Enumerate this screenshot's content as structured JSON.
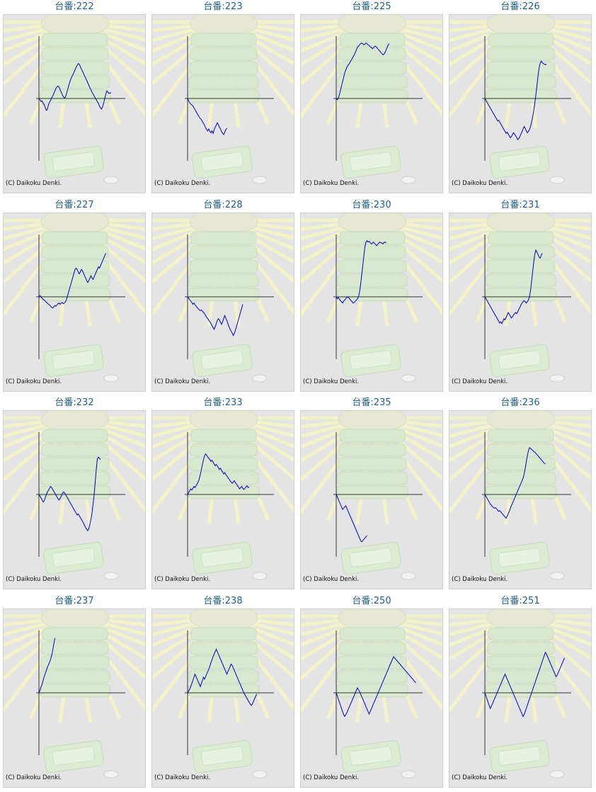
{
  "page": {
    "title_prefix": "台番:"
  },
  "colors": {
    "line": "#0000c8",
    "axis": "#333333",
    "title": "#1f5f86",
    "panel_bg": "#e4e4e4"
  },
  "chart_data": [
    {
      "type": "line",
      "title": "台番:222",
      "watermark": "(C) Daikoku Denki.",
      "values": [
        0,
        -2,
        -5,
        -4,
        -8,
        -10,
        -15,
        -19,
        -17,
        -10,
        -6,
        -3,
        1,
        4,
        8,
        12,
        16,
        19,
        20,
        18,
        14,
        10,
        6,
        3,
        1,
        2,
        8,
        14,
        20,
        26,
        31,
        35,
        38,
        42,
        46,
        50,
        53,
        56,
        55,
        51,
        47,
        44,
        40,
        36,
        33,
        29,
        25,
        21,
        17,
        14,
        10,
        7,
        4,
        1,
        -2,
        -5,
        -8,
        -12,
        -15,
        -17,
        -13,
        -7,
        0,
        7,
        12,
        10,
        8,
        9,
        9
      ]
    },
    {
      "type": "line",
      "title": "台番:223",
      "watermark": "(C) Daikoku Denki.",
      "values": [
        0,
        -4,
        -7,
        -9,
        -10,
        -12,
        -15,
        -18,
        -21,
        -24,
        -27,
        -30,
        -32,
        -34,
        -37,
        -40,
        -43,
        -47,
        -50,
        -52,
        -49,
        -53,
        -55,
        -52,
        -56,
        -50,
        -46,
        -43,
        -39,
        -42,
        -46,
        -49,
        -53,
        -56,
        -58,
        -54,
        -50,
        -48
      ]
    },
    {
      "type": "line",
      "title": "台番:225",
      "watermark": "(C) Daikoku Denki.",
      "values": [
        0,
        -2,
        1,
        6,
        13,
        20,
        27,
        34,
        41,
        46,
        50,
        53,
        55,
        58,
        61,
        64,
        67,
        70,
        74,
        78,
        82,
        84,
        86,
        88,
        89,
        88,
        86,
        87,
        89,
        88,
        86,
        85,
        83,
        82,
        80,
        81,
        83,
        84,
        82,
        80,
        78,
        76,
        74,
        72,
        70,
        71,
        74,
        78,
        82,
        86,
        88
      ]
    },
    {
      "type": "line",
      "title": "台番:226",
      "watermark": "(C) Daikoku Denki.",
      "values": [
        0,
        -3,
        -6,
        -9,
        -12,
        -15,
        -18,
        -21,
        -24,
        -27,
        -30,
        -33,
        -36,
        -35,
        -38,
        -41,
        -44,
        -47,
        -50,
        -53,
        -56,
        -54,
        -57,
        -60,
        -63,
        -61,
        -58,
        -55,
        -57,
        -60,
        -63,
        -66,
        -64,
        -61,
        -57,
        -53,
        -49,
        -45,
        -48,
        -52,
        -55,
        -53,
        -50,
        -45,
        -38,
        -30,
        -20,
        -8,
        5,
        20,
        35,
        48,
        56,
        60,
        58,
        56,
        55,
        54,
        55
      ]
    },
    {
      "type": "line",
      "title": "台番:227",
      "watermark": "(C) Daikoku Denki.",
      "values": [
        0,
        2,
        0,
        -2,
        -4,
        -5,
        -7,
        -9,
        -10,
        -12,
        -13,
        -15,
        -17,
        -18,
        -16,
        -14,
        -15,
        -13,
        -11,
        -10,
        -12,
        -10,
        -9,
        -11,
        -10,
        -8,
        -4,
        2,
        8,
        14,
        20,
        26,
        32,
        38,
        44,
        46,
        44,
        40,
        37,
        40,
        44,
        42,
        38,
        34,
        30,
        26,
        23,
        26,
        30,
        34,
        30,
        28,
        32,
        36,
        40,
        44,
        48,
        46,
        50,
        54,
        58,
        62,
        66,
        70
      ]
    },
    {
      "type": "line",
      "title": "台番:228",
      "watermark": "(C) Daikoku Denki.",
      "values": [
        0,
        -2,
        -5,
        -7,
        -9,
        -12,
        -10,
        -13,
        -15,
        -17,
        -19,
        -21,
        -22,
        -21,
        -23,
        -25,
        -27,
        -30,
        -33,
        -35,
        -38,
        -40,
        -43,
        -46,
        -49,
        -52,
        -48,
        -43,
        -38,
        -35,
        -37,
        -41,
        -44,
        -40,
        -35,
        -30,
        -34,
        -38,
        -43,
        -48,
        -52,
        -55,
        -58,
        -62,
        -59,
        -54,
        -48,
        -42,
        -36,
        -30,
        -24,
        -18,
        -12
      ]
    },
    {
      "type": "line",
      "title": "台番:230",
      "watermark": "(C) Daikoku Denki.",
      "values": [
        0,
        -3,
        -1,
        -4,
        -6,
        -8,
        -10,
        -7,
        -5,
        -3,
        -1,
        0,
        -2,
        -4,
        -6,
        -8,
        -10,
        -9,
        -7,
        -5,
        -3,
        0,
        8,
        20,
        35,
        50,
        65,
        80,
        88,
        90,
        88,
        89,
        87,
        85,
        86,
        88,
        86,
        84,
        82,
        84,
        86,
        88,
        87,
        86,
        85,
        87,
        88,
        86
      ]
    },
    {
      "type": "line",
      "title": "台番:231",
      "watermark": "(C) Daikoku Denki.",
      "values": [
        0,
        -3,
        -6,
        -9,
        -12,
        -15,
        -18,
        -21,
        -24,
        -27,
        -30,
        -33,
        -36,
        -39,
        -42,
        -40,
        -43,
        -39,
        -35,
        -37,
        -33,
        -29,
        -25,
        -28,
        -31,
        -34,
        -32,
        -29,
        -27,
        -25,
        -27,
        -24,
        -20,
        -17,
        -13,
        -10,
        -8,
        -6,
        -8,
        -10,
        -8,
        -5,
        0,
        10,
        25,
        40,
        55,
        68,
        75,
        72,
        68,
        64,
        62,
        66,
        70
      ]
    },
    {
      "type": "line",
      "title": "台番:232",
      "watermark": "(C) Daikoku Denki.",
      "values": [
        0,
        -3,
        -6,
        -9,
        -12,
        -10,
        -5,
        0,
        4,
        7,
        10,
        13,
        11,
        8,
        5,
        2,
        -1,
        -4,
        -7,
        -9,
        -6,
        -3,
        1,
        4,
        3,
        0,
        -3,
        -6,
        -9,
        -12,
        -15,
        -18,
        -21,
        -24,
        -27,
        -30,
        -33,
        -31,
        -34,
        -37,
        -40,
        -43,
        -46,
        -50,
        -53,
        -56,
        -58,
        -55,
        -48,
        -40,
        -30,
        -15,
        0,
        20,
        40,
        57,
        60,
        58,
        56
      ]
    },
    {
      "type": "line",
      "title": "台番:233",
      "watermark": "(C) Daikoku Denki.",
      "values": [
        0,
        3,
        6,
        9,
        7,
        10,
        13,
        11,
        14,
        17,
        20,
        25,
        32,
        40,
        48,
        56,
        62,
        65,
        63,
        60,
        58,
        56,
        53,
        55,
        52,
        49,
        46,
        48,
        46,
        43,
        40,
        42,
        39,
        36,
        33,
        35,
        32,
        30,
        27,
        25,
        22,
        20,
        18,
        20,
        22,
        19,
        17,
        14,
        12,
        9,
        11,
        13,
        10,
        8,
        10,
        12,
        14,
        11,
        12
      ]
    },
    {
      "type": "line",
      "title": "台番:235",
      "watermark": "(C) Daikoku Denki.",
      "values": [
        0,
        -4,
        -8,
        -12,
        -16,
        -20,
        -24,
        -22,
        -20,
        -18,
        -22,
        -26,
        -30,
        -34,
        -38,
        -42,
        -46,
        -50,
        -54,
        -58,
        -62,
        -66,
        -70,
        -74,
        -76,
        -74,
        -72,
        -70,
        -68,
        -66
      ]
    },
    {
      "type": "line",
      "title": "台番:236",
      "watermark": "(C) Daikoku Denki.",
      "values": [
        0,
        -3,
        -6,
        -9,
        -12,
        -15,
        -17,
        -19,
        -21,
        -22,
        -21,
        -23,
        -25,
        -27,
        -26,
        -28,
        -30,
        -32,
        -34,
        -36,
        -38,
        -35,
        -31,
        -27,
        -22,
        -18,
        -14,
        -10,
        -6,
        -2,
        2,
        6,
        10,
        14,
        18,
        22,
        26,
        33,
        42,
        52,
        62,
        70,
        75,
        74,
        72,
        71,
        69,
        68,
        66,
        64,
        62,
        60,
        58,
        56,
        54,
        52,
        50,
        49
      ]
    },
    {
      "type": "line",
      "title": "台番:237",
      "watermark": "(C) Daikoku Denki.",
      "values": [
        0,
        4,
        9,
        14,
        20,
        26,
        31,
        36,
        41,
        45,
        49,
        54,
        60,
        68,
        78,
        88
      ]
    },
    {
      "type": "line",
      "title": "台番:238",
      "watermark": "(C) Daikoku Denki.",
      "values": [
        0,
        3,
        6,
        10,
        15,
        20,
        25,
        30,
        26,
        22,
        18,
        14,
        10,
        15,
        20,
        25,
        22,
        26,
        30,
        34,
        38,
        43,
        48,
        53,
        58,
        62,
        66,
        70,
        66,
        62,
        58,
        54,
        50,
        46,
        42,
        38,
        34,
        30,
        34,
        38,
        42,
        46,
        44,
        40,
        36,
        32,
        28,
        24,
        20,
        16,
        12,
        8,
        4,
        0,
        -3,
        -6,
        -9,
        -12,
        -15,
        -18,
        -20,
        -18,
        -14,
        -10,
        -6,
        -2
      ]
    },
    {
      "type": "line",
      "title": "台番:250",
      "watermark": "(C) Daikoku Denki.",
      "values": [
        0,
        -5,
        -10,
        -15,
        -20,
        -25,
        -30,
        -35,
        -38,
        -35,
        -32,
        -28,
        -24,
        -20,
        -16,
        -12,
        -8,
        -4,
        0,
        4,
        8,
        5,
        2,
        -2,
        -6,
        -10,
        -14,
        -18,
        -22,
        -26,
        -30,
        -34,
        -30,
        -26,
        -22,
        -18,
        -14,
        -10,
        -6,
        -2,
        2,
        6,
        10,
        14,
        18,
        22,
        26,
        30,
        34,
        38,
        42,
        46,
        50,
        54,
        58,
        56,
        54,
        52,
        50,
        48,
        46,
        44,
        42,
        40,
        38,
        36,
        34,
        32,
        30,
        28,
        26,
        24,
        22,
        20,
        18,
        16
      ]
    },
    {
      "type": "line",
      "title": "台番:251",
      "watermark": "(C) Daikoku Denki.",
      "values": [
        0,
        -5,
        -10,
        -15,
        -20,
        -25,
        -22,
        -18,
        -14,
        -10,
        -6,
        -2,
        2,
        6,
        10,
        14,
        18,
        22,
        26,
        30,
        26,
        22,
        18,
        14,
        10,
        6,
        2,
        -2,
        -6,
        -10,
        -14,
        -18,
        -22,
        -26,
        -30,
        -34,
        -38,
        -35,
        -30,
        -25,
        -20,
        -15,
        -10,
        -5,
        0,
        5,
        10,
        15,
        20,
        25,
        30,
        35,
        40,
        45,
        50,
        55,
        60,
        65,
        62,
        58,
        54,
        50,
        46,
        42,
        38,
        34,
        30,
        26,
        28,
        32,
        36,
        40,
        44,
        48,
        52,
        56
      ]
    }
  ]
}
